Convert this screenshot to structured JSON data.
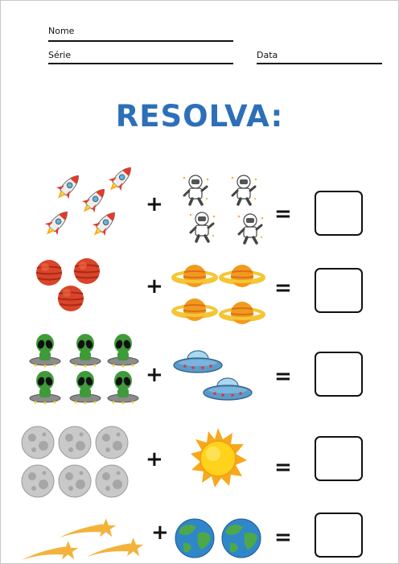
{
  "header": {
    "name_label": "Nome",
    "grade_label": "Série",
    "date_label": "Data"
  },
  "title": "RESOLVA:",
  "exercises": [
    {
      "left_item": "rocket-icon",
      "left_count": 5,
      "right_item": "astronaut-icon",
      "right_count": 4,
      "plus": "+",
      "equals": "="
    },
    {
      "left_item": "red-planet-icon",
      "left_count": 3,
      "right_item": "ringed-planet-icon",
      "right_count": 4,
      "plus": "+",
      "equals": "="
    },
    {
      "left_item": "alien-icon",
      "left_count": 6,
      "right_item": "ufo-icon",
      "right_count": 2,
      "plus": "+",
      "equals": "="
    },
    {
      "left_item": "moon-icon",
      "left_count": 6,
      "right_item": "sun-icon",
      "right_count": 1,
      "plus": "+",
      "equals": "="
    },
    {
      "left_item": "shooting-star-icon",
      "left_count": 3,
      "right_item": "earth-icon",
      "right_count": 2,
      "plus": "+",
      "equals": "="
    }
  ],
  "colors": {
    "title": "#2d6fb8",
    "rocket_red": "#e23b2b",
    "alien_green": "#3f9a3a",
    "planet_orange": "#f29a1d",
    "mars_red": "#d9442a",
    "earth_blue": "#2f86c9"
  }
}
